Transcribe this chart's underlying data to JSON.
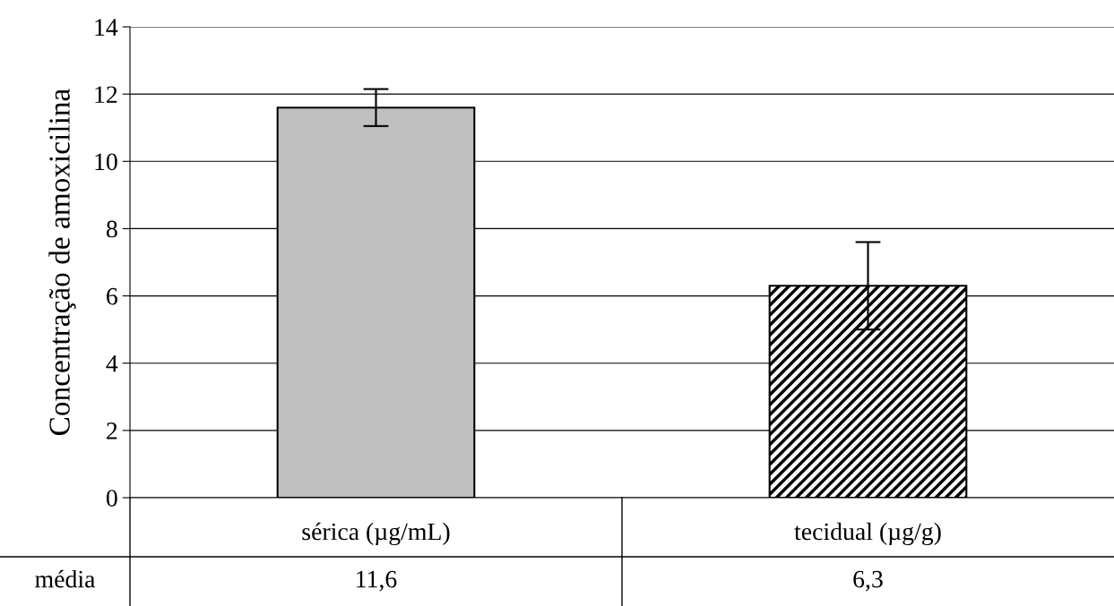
{
  "chart_data": {
    "type": "bar",
    "ylabel": "Concentração de amoxicilina",
    "categories": [
      "sérica (µg/mL)",
      "tecidual (µg/g)"
    ],
    "values": [
      11.6,
      6.3
    ],
    "colors": [
      "#c0c0c0",
      "#000000"
    ],
    "errors": [
      0.55,
      1.3
    ],
    "value_labels": [
      "11,6",
      "6,3"
    ],
    "annotations": [
      "média"
    ],
    "ylim": [
      0,
      14
    ],
    "yticks": [
      0,
      2,
      4,
      6,
      8,
      10,
      12,
      14
    ],
    "grid": "y"
  }
}
